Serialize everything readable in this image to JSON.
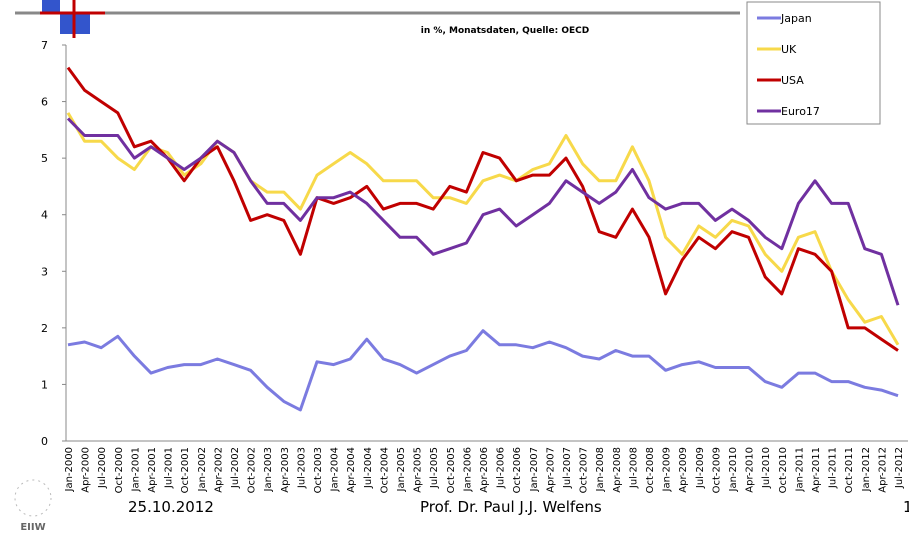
{
  "chart_data": {
    "type": "line",
    "subtitle": "in %, Monatsdaten, Quelle: OECD",
    "categories": [
      "Jan-2000",
      "Apr-2000",
      "Jul-2000",
      "Oct-2000",
      "Jan-2001",
      "Apr-2001",
      "Jul-2001",
      "Oct-2001",
      "Jan-2002",
      "Apr-2002",
      "Jul-2002",
      "Oct-2002",
      "Jan-2003",
      "Apr-2003",
      "Jul-2003",
      "Oct-2003",
      "Jan-2004",
      "Apr-2004",
      "Jul-2004",
      "Oct-2004",
      "Jan-2005",
      "Apr-2005",
      "Jul-2005",
      "Oct-2005",
      "Jan-2006",
      "Apr-2006",
      "Jul-2006",
      "Oct-2006",
      "Jan-2007",
      "Apr-2007",
      "Jul-2007",
      "Oct-2007",
      "Jan-2008",
      "Apr-2008",
      "Jul-2008",
      "Oct-2008",
      "Jan-2009",
      "Apr-2009",
      "Jul-2009",
      "Oct-2009",
      "Jan-2010",
      "Apr-2010",
      "Jul-2010",
      "Oct-2010",
      "Jan-2011",
      "Apr-2011",
      "Jul-2011",
      "Oct-2011",
      "Jan-2012",
      "Apr-2012",
      "Jul-2012"
    ],
    "series": [
      {
        "name": "Japan",
        "color": "#7b7be0",
        "values": [
          1.7,
          1.75,
          1.65,
          1.85,
          1.5,
          1.2,
          1.3,
          1.35,
          1.35,
          1.45,
          1.35,
          1.25,
          0.95,
          0.7,
          0.55,
          1.4,
          1.35,
          1.45,
          1.8,
          1.45,
          1.35,
          1.2,
          1.35,
          1.5,
          1.6,
          1.95,
          1.7,
          1.7,
          1.65,
          1.75,
          1.65,
          1.5,
          1.45,
          1.6,
          1.5,
          1.5,
          1.25,
          1.35,
          1.4,
          1.3,
          1.3,
          1.3,
          1.05,
          0.95,
          1.2,
          1.2,
          1.05,
          1.05,
          0.95,
          0.9,
          0.8
        ]
      },
      {
        "name": "UK",
        "color": "#f7d94a",
        "values": [
          5.8,
          5.3,
          5.3,
          5.0,
          4.8,
          5.2,
          5.1,
          4.7,
          4.9,
          5.3,
          5.1,
          4.6,
          4.4,
          4.4,
          4.1,
          4.7,
          4.9,
          5.1,
          4.9,
          4.6,
          4.6,
          4.6,
          4.3,
          4.3,
          4.2,
          4.6,
          4.7,
          4.6,
          4.8,
          4.9,
          5.4,
          4.9,
          4.6,
          4.6,
          5.2,
          4.6,
          3.6,
          3.3,
          3.8,
          3.6,
          3.9,
          3.8,
          3.3,
          3.0,
          3.6,
          3.7,
          3.0,
          2.5,
          2.1,
          2.2,
          1.7
        ]
      },
      {
        "name": "USA",
        "color": "#c00000",
        "values": [
          6.6,
          6.2,
          6.0,
          5.8,
          5.2,
          5.3,
          5.0,
          4.6,
          5.0,
          5.2,
          4.6,
          3.9,
          4.0,
          3.9,
          3.3,
          4.3,
          4.2,
          4.3,
          4.5,
          4.1,
          4.2,
          4.2,
          4.1,
          4.5,
          4.4,
          5.1,
          5.0,
          4.6,
          4.7,
          4.7,
          5.0,
          4.5,
          3.7,
          3.6,
          4.1,
          3.6,
          2.6,
          3.2,
          3.6,
          3.4,
          3.7,
          3.6,
          2.9,
          2.6,
          3.4,
          3.3,
          3.0,
          2.0,
          2.0,
          1.8,
          1.6
        ]
      },
      {
        "name": "Euro17",
        "color": "#7030a0",
        "values": [
          5.7,
          5.4,
          5.4,
          5.4,
          5.0,
          5.2,
          5.0,
          4.8,
          5.0,
          5.3,
          5.1,
          4.6,
          4.2,
          4.2,
          3.9,
          4.3,
          4.3,
          4.4,
          4.2,
          3.9,
          3.6,
          3.6,
          3.3,
          3.4,
          3.5,
          4.0,
          4.1,
          3.8,
          4.0,
          4.2,
          4.6,
          4.4,
          4.2,
          4.4,
          4.8,
          4.3,
          4.1,
          4.2,
          4.2,
          3.9,
          4.1,
          3.9,
          3.6,
          3.4,
          4.2,
          4.6,
          4.2,
          4.2,
          3.4,
          3.3,
          2.4
        ]
      }
    ],
    "ylim": [
      0,
      7
    ],
    "yticks": [
      0,
      1,
      2,
      3,
      4,
      5,
      6,
      7
    ],
    "grid": false
  },
  "footer": {
    "date": "25.10.2012",
    "author": "Prof. Dr. Paul J.J. Welfens",
    "page": "1",
    "logo": "EIIW"
  }
}
